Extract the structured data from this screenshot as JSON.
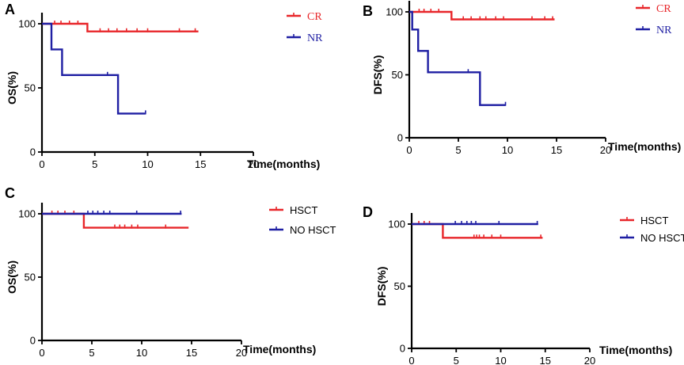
{
  "figure": {
    "colors": {
      "red": "#e8262a",
      "blue": "#1f1fa3"
    }
  },
  "chart_data": [
    {
      "panel_label": "A",
      "type": "line",
      "ylabel": "OS(%)",
      "xlabel": "Time(months)",
      "xlim": [
        0,
        20
      ],
      "ylim": [
        0,
        100
      ],
      "xticks": [
        0,
        5,
        10,
        15,
        20
      ],
      "yticks": [
        0,
        50,
        100
      ],
      "legend_font": "serif",
      "series": [
        {
          "name": "CR",
          "color": "red",
          "steps": [
            [
              0,
              100
            ],
            [
              4.3,
              100
            ],
            [
              4.3,
              94
            ],
            [
              14.8,
              94
            ]
          ],
          "censored": [
            [
              1.2,
              100
            ],
            [
              1.8,
              100
            ],
            [
              2.6,
              100
            ],
            [
              3.4,
              100
            ],
            [
              5.5,
              94
            ],
            [
              6.3,
              94
            ],
            [
              7.1,
              94
            ],
            [
              8.0,
              94
            ],
            [
              9.0,
              94
            ],
            [
              10.0,
              94
            ],
            [
              13.0,
              94
            ],
            [
              14.5,
              94
            ]
          ]
        },
        {
          "name": "NR",
          "color": "blue",
          "steps": [
            [
              0,
              100
            ],
            [
              0.9,
              100
            ],
            [
              0.9,
              80
            ],
            [
              1.9,
              80
            ],
            [
              1.9,
              60
            ],
            [
              7.2,
              60
            ],
            [
              7.2,
              30
            ],
            [
              9.8,
              30
            ]
          ],
          "censored": [
            [
              6.2,
              60
            ],
            [
              9.8,
              30
            ]
          ]
        }
      ]
    },
    {
      "panel_label": "B",
      "type": "line",
      "ylabel": "DFS(%)",
      "xlabel": "Time(months)",
      "xlim": [
        0,
        20
      ],
      "ylim": [
        0,
        100
      ],
      "xticks": [
        0,
        5,
        10,
        15,
        20
      ],
      "yticks": [
        0,
        50,
        100
      ],
      "legend_font": "serif",
      "series": [
        {
          "name": "CR",
          "color": "red",
          "steps": [
            [
              0,
              100
            ],
            [
              4.3,
              100
            ],
            [
              4.3,
              94
            ],
            [
              14.8,
              94
            ]
          ],
          "censored": [
            [
              1.0,
              100
            ],
            [
              1.5,
              100
            ],
            [
              2.2,
              100
            ],
            [
              3.0,
              100
            ],
            [
              5.5,
              94
            ],
            [
              6.3,
              94
            ],
            [
              7.2,
              94
            ],
            [
              7.8,
              94
            ],
            [
              8.8,
              94
            ],
            [
              9.6,
              94
            ],
            [
              12.5,
              94
            ],
            [
              13.8,
              94
            ],
            [
              14.6,
              94
            ]
          ]
        },
        {
          "name": "NR",
          "color": "blue",
          "steps": [
            [
              0,
              100
            ],
            [
              0.3,
              100
            ],
            [
              0.3,
              86
            ],
            [
              0.9,
              86
            ],
            [
              0.9,
              69
            ],
            [
              1.9,
              69
            ],
            [
              1.9,
              52
            ],
            [
              7.2,
              52
            ],
            [
              7.2,
              26
            ],
            [
              9.8,
              26
            ]
          ],
          "censored": [
            [
              6.0,
              52
            ],
            [
              9.8,
              26
            ]
          ]
        }
      ]
    },
    {
      "panel_label": "C",
      "type": "line",
      "ylabel": "OS(%)",
      "xlabel": "Time(months)",
      "xlim": [
        0,
        20
      ],
      "ylim": [
        0,
        100
      ],
      "xticks": [
        0,
        5,
        10,
        15,
        20
      ],
      "yticks": [
        0,
        50,
        100
      ],
      "legend_font": "sans",
      "series": [
        {
          "name": "HSCT",
          "color": "red",
          "steps": [
            [
              0,
              100
            ],
            [
              4.2,
              100
            ],
            [
              4.2,
              89
            ],
            [
              14.7,
              89
            ]
          ],
          "censored": [
            [
              1.0,
              100
            ],
            [
              1.6,
              100
            ],
            [
              2.3,
              100
            ],
            [
              3.2,
              100
            ],
            [
              7.3,
              89
            ],
            [
              7.8,
              89
            ],
            [
              8.3,
              89
            ],
            [
              9.0,
              89
            ],
            [
              9.6,
              89
            ],
            [
              12.4,
              89
            ]
          ]
        },
        {
          "name": "NO HSCT",
          "color": "blue",
          "steps": [
            [
              0,
              100
            ],
            [
              14.0,
              100
            ]
          ],
          "censored": [
            [
              4.6,
              100
            ],
            [
              5.1,
              100
            ],
            [
              5.6,
              100
            ],
            [
              6.2,
              100
            ],
            [
              6.8,
              100
            ],
            [
              9.5,
              100
            ],
            [
              13.9,
              100
            ]
          ]
        }
      ]
    },
    {
      "panel_label": "D",
      "type": "line",
      "ylabel": "DFS(%)",
      "xlabel": "Time(months)",
      "xlim": [
        0,
        20
      ],
      "ylim": [
        0,
        100
      ],
      "xticks": [
        0,
        5,
        10,
        15,
        20
      ],
      "yticks": [
        0,
        50,
        100
      ],
      "legend_font": "sans",
      "series": [
        {
          "name": "HSCT",
          "color": "red",
          "steps": [
            [
              0,
              100
            ],
            [
              3.5,
              100
            ],
            [
              3.5,
              89
            ],
            [
              14.7,
              89
            ]
          ],
          "censored": [
            [
              0.8,
              100
            ],
            [
              1.4,
              100
            ],
            [
              2.0,
              100
            ],
            [
              7.0,
              89
            ],
            [
              7.3,
              89
            ],
            [
              7.6,
              89
            ],
            [
              8.1,
              89
            ],
            [
              9.0,
              89
            ],
            [
              10.0,
              89
            ],
            [
              14.5,
              89
            ]
          ]
        },
        {
          "name": "NO HSCT",
          "color": "blue",
          "steps": [
            [
              0,
              100
            ],
            [
              14.2,
              100
            ]
          ],
          "censored": [
            [
              4.9,
              100
            ],
            [
              5.6,
              100
            ],
            [
              6.2,
              100
            ],
            [
              6.7,
              100
            ],
            [
              7.2,
              100
            ],
            [
              9.8,
              100
            ],
            [
              14.1,
              100
            ]
          ]
        }
      ]
    }
  ]
}
